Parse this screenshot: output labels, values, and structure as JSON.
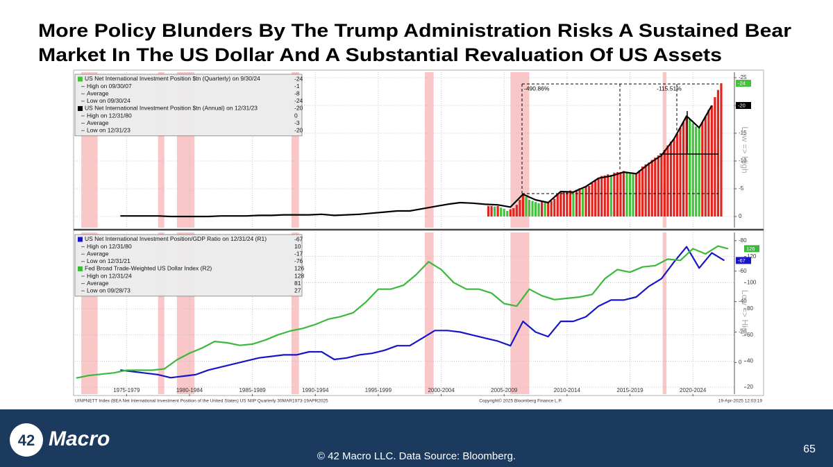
{
  "title": [
    "More Policy Blunders By The Trump Administration Risks A Sustained Bear",
    "Market In The US Dollar And A Substantial Revaluation Of US Assets"
  ],
  "source": {
    "left": "UINPNETT Index (BEA Net International Investment Position of the United States) US NIIP  Quarterly 30MAR1973-19APR2025",
    "center": "Copyright© 2025 Bloomberg Finance L.P.",
    "right": "19-Apr-2025 12:03:19"
  },
  "footer": {
    "logo_number": "42",
    "logo_word": "Macro",
    "text": "© 42 Macro LLC. Data Source: Bloomberg.",
    "page": "65"
  },
  "chart_data": [
    {
      "type": "bar_line",
      "xlim": [
        1973.4,
        2025.8
      ],
      "ylim": [
        2,
        -26
      ],
      "yticks": [
        -25,
        -20,
        -15,
        -10,
        -5,
        0
      ],
      "y_label": "Low => High",
      "grid": true,
      "shaded_periods": [
        [
          1973.9,
          1975.2
        ],
        [
          1980.0,
          1980.5
        ],
        [
          1981.5,
          1982.9
        ],
        [
          1990.6,
          1991.2
        ],
        [
          2001.2,
          2001.9
        ],
        [
          2008.0,
          2009.5
        ],
        [
          2020.1,
          2020.4
        ]
      ],
      "annotations": [
        "-490.86%",
        "-115.51%"
      ],
      "series": [
        {
          "name": "US Net International Investment Position $tn (Quarterly)",
          "kind": "bar",
          "color": "#e3241e",
          "up_color": "#44c23c",
          "badge_color": "#44c23c",
          "legend": {
            "date": "on 9/30/24",
            "value": -24,
            "rows": [
              {
                "label": "High on 09/30/07",
                "value": -1
              },
              {
                "label": "Average",
                "value": -8
              },
              {
                "label": "Low on 09/30/24",
                "value": -24
              }
            ]
          },
          "x": [
            2006.25,
            2006.5,
            2006.75,
            2007,
            2007.25,
            2007.5,
            2007.75,
            2008,
            2008.25,
            2008.5,
            2008.75,
            2009,
            2009.25,
            2009.5,
            2009.75,
            2010,
            2010.25,
            2010.5,
            2010.75,
            2011,
            2011.25,
            2011.5,
            2011.75,
            2012,
            2012.25,
            2012.5,
            2012.75,
            2013,
            2013.25,
            2013.5,
            2013.75,
            2014,
            2014.25,
            2014.5,
            2014.75,
            2015,
            2015.25,
            2015.5,
            2015.75,
            2016,
            2016.25,
            2016.5,
            2016.75,
            2017,
            2017.25,
            2017.5,
            2017.75,
            2018,
            2018.25,
            2018.5,
            2018.75,
            2019,
            2019.25,
            2019.5,
            2019.75,
            2020,
            2020.25,
            2020.5,
            2020.75,
            2021,
            2021.25,
            2021.5,
            2021.75,
            2022,
            2022.25,
            2022.5,
            2022.75,
            2023,
            2023.25,
            2023.5,
            2023.75,
            2024,
            2024.25,
            2024.5,
            2024.75
          ],
          "values": [
            -1.9,
            -1.9,
            -1.8,
            -1.9,
            -1.6,
            -1.4,
            -1.0,
            -1.3,
            -1.5,
            -2.1,
            -3.0,
            -4.0,
            -3.5,
            -3.0,
            -2.8,
            -2.6,
            -2.4,
            -2.7,
            -2.5,
            -2.5,
            -2.8,
            -3.2,
            -4.1,
            -4.4,
            -4.5,
            -4.6,
            -4.7,
            -4.5,
            -4.8,
            -5.1,
            -5.0,
            -5.4,
            -5.5,
            -6.0,
            -6.6,
            -7.0,
            -7.3,
            -7.4,
            -7.6,
            -7.5,
            -7.9,
            -8.0,
            -8.0,
            -8.2,
            -8.0,
            -7.9,
            -7.6,
            -7.7,
            -8.3,
            -9.0,
            -9.4,
            -9.7,
            -10.2,
            -10.6,
            -11.0,
            -11.0,
            -12.0,
            -12.8,
            -13.5,
            -13.9,
            -14.9,
            -16.0,
            -17.0,
            -18.1,
            -17.6,
            -16.8,
            -16.2,
            -16.1,
            -17.0,
            -18.0,
            -19.2,
            -20.0,
            -21.5,
            -22.8,
            -24
          ]
        },
        {
          "name": "US Net International Investment Position $tn (Annual)",
          "kind": "line",
          "color": "#000000",
          "badge_color": "#000000",
          "legend": {
            "date": "on 12/31/23",
            "value": -20,
            "rows": [
              {
                "label": "High on 12/31/80",
                "value": 0
              },
              {
                "label": "Average",
                "value": -3
              },
              {
                "label": "Low on 12/31/23",
                "value": -20
              }
            ]
          },
          "x": [
            1977,
            1978,
            1979,
            1980,
            1981,
            1982,
            1983,
            1984,
            1985,
            1986,
            1987,
            1988,
            1989,
            1990,
            1991,
            1992,
            1993,
            1994,
            1995,
            1996,
            1997,
            1998,
            1999,
            2000,
            2001,
            2002,
            2003,
            2004,
            2005,
            2006,
            2007,
            2008,
            2009,
            2010,
            2011,
            2012,
            2013,
            2014,
            2015,
            2016,
            2017,
            2018,
            2019,
            2020,
            2021,
            2022,
            2023,
            2024
          ],
          "values": [
            -0.1,
            -0.1,
            -0.1,
            -0.1,
            0,
            0,
            0,
            0,
            -0.1,
            -0.1,
            -0.1,
            -0.2,
            -0.2,
            -0.3,
            -0.3,
            -0.3,
            -0.4,
            -0.2,
            -0.3,
            -0.4,
            -0.6,
            -0.8,
            -1.0,
            -1.0,
            -1.4,
            -1.8,
            -2.2,
            -2.5,
            -2.4,
            -2.2,
            -2.1,
            -1.7,
            -4.0,
            -3.0,
            -2.5,
            -4.5,
            -4.4,
            -5.4,
            -6.9,
            -7.3,
            -8.0,
            -7.7,
            -9.5,
            -11.0,
            -14.0,
            -18.1,
            -16.0,
            -20
          ]
        }
      ]
    },
    {
      "type": "line",
      "xlim": [
        1973.4,
        2025.8
      ],
      "xticks": [
        {
          "value": 1977.5,
          "label": "1975-1979"
        },
        {
          "value": 1982.5,
          "label": "1980-1984"
        },
        {
          "value": 1987.5,
          "label": "1985-1989"
        },
        {
          "value": 1992.5,
          "label": "1990-1994"
        },
        {
          "value": 1997.5,
          "label": "1995-1999"
        },
        {
          "value": 2002.5,
          "label": "2000-2004"
        },
        {
          "value": 2007.5,
          "label": "2005-2009"
        },
        {
          "value": 2012.5,
          "label": "2010-2014"
        },
        {
          "value": 2017.5,
          "label": "2015-2019"
        },
        {
          "value": 2022.5,
          "label": "2020-2024"
        }
      ],
      "ylim": [
        20.8,
        -85.4
      ],
      "yticks": [
        -80,
        -60,
        -40,
        -20,
        0
      ],
      "y2lim": [
        14.7,
        138.4
      ],
      "y2ticks": [
        20,
        40,
        60,
        80,
        100,
        120
      ],
      "y_label": "Low => High",
      "grid": true,
      "series": [
        {
          "name": "US Net International Investment Position/GDP Ratio",
          "kind": "line",
          "color": "#1616c8",
          "badge_color": "#1616c8",
          "legend": {
            "date": "on 12/31/24 (R1)",
            "value": -67,
            "rows": [
              {
                "label": "High on 12/31/80",
                "value": 10
              },
              {
                "label": "Average",
                "value": -17
              },
              {
                "label": "Low on 12/31/21",
                "value": -76
              }
            ]
          },
          "x": [
            1977,
            1978,
            1979,
            1980,
            1981,
            1982,
            1983,
            1984,
            1985,
            1986,
            1987,
            1988,
            1989,
            1990,
            1991,
            1992,
            1993,
            1994,
            1995,
            1996,
            1997,
            1998,
            1999,
            2000,
            2001,
            2002,
            2003,
            2004,
            2005,
            2006,
            2007,
            2008,
            2009,
            2010,
            2011,
            2012,
            2013,
            2014,
            2015,
            2016,
            2017,
            2018,
            2019,
            2020,
            2021,
            2022,
            2023,
            2024,
            2025
          ],
          "values": [
            5,
            6,
            7,
            8,
            10,
            9,
            8,
            5,
            3,
            1,
            -1,
            -3,
            -4,
            -5,
            -5,
            -7,
            -7,
            -2,
            -3,
            -5,
            -6,
            -8,
            -11,
            -11,
            -16,
            -21,
            -21,
            -20,
            -18,
            -16,
            -14,
            -11,
            -27,
            -20,
            -17,
            -27,
            -27,
            -30,
            -37,
            -41,
            -41,
            -43,
            -50,
            -55,
            -66,
            -76,
            -62,
            -72,
            -67
          ]
        },
        {
          "name": "Fed Broad Trade-Weighted US Dollar Index (R2)",
          "kind": "line",
          "axis": "y2",
          "color": "#3cb83a",
          "badge_color": "#3cb83a",
          "legend": {
            "value": 126,
            "rows": [
              {
                "label": "High on 12/31/24",
                "value": 128
              },
              {
                "label": "Average",
                "value": 81
              },
              {
                "label": "Low on 09/28/73",
                "value": 27
              }
            ]
          },
          "x": [
            1973.5,
            1974.5,
            1975.5,
            1976.5,
            1977.5,
            1978.5,
            1979.5,
            1980.5,
            1981.5,
            1982.5,
            1983.5,
            1984.5,
            1985.5,
            1986.5,
            1987.5,
            1988.5,
            1989.5,
            1990.5,
            1991.5,
            1992.5,
            1993.5,
            1994.5,
            1995.5,
            1996.5,
            1997.5,
            1998.5,
            1999.5,
            2000.5,
            2001.5,
            2002.5,
            2003.5,
            2004.5,
            2005.5,
            2006.5,
            2007.5,
            2008.5,
            2009.5,
            2010.5,
            2011.5,
            2012.5,
            2013.5,
            2014.5,
            2015.5,
            2016.5,
            2017.5,
            2018.5,
            2019.5,
            2020.5,
            2021.5,
            2022.5,
            2023.5,
            2024.5,
            2025.3
          ],
          "values": [
            27,
            29,
            30,
            31,
            33,
            33,
            33,
            34,
            41,
            46,
            50,
            55,
            54,
            52,
            53,
            56,
            60,
            63,
            65,
            68,
            72,
            74,
            77,
            85,
            95,
            95,
            98,
            106,
            116,
            110,
            100,
            95,
            95,
            92,
            84,
            82,
            95,
            90,
            87,
            88,
            89,
            91,
            103,
            110,
            108,
            112,
            113,
            118,
            117,
            126,
            122,
            128,
            126
          ]
        }
      ]
    }
  ]
}
